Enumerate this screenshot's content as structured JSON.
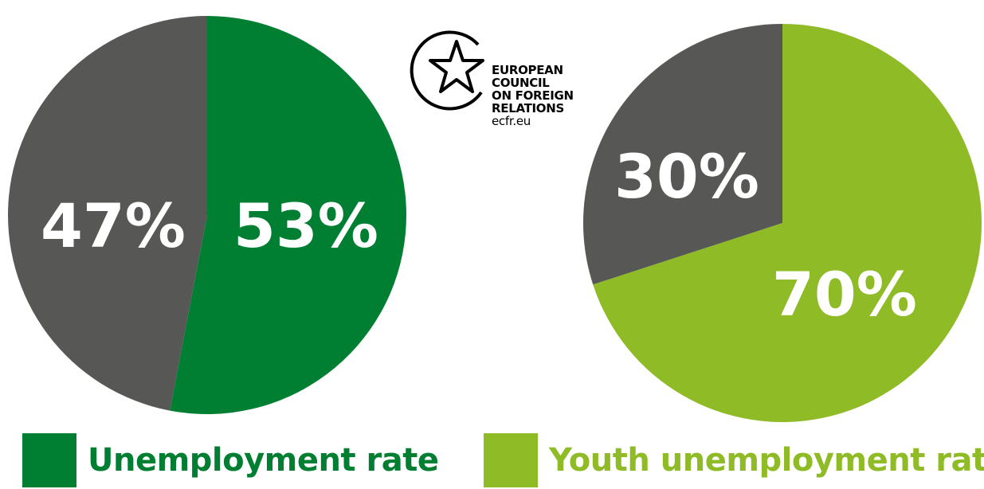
{
  "logo": {
    "line1": "EUROPEAN",
    "line2": "COUNCIL",
    "line3": "ON FOREIGN",
    "line4": "RELATIONS",
    "url": "ecfr.eu"
  },
  "chart_data": [
    {
      "type": "pie",
      "series_name": "Unemployment rate",
      "slices": [
        {
          "label": "53%",
          "value": 53,
          "color": "#007f33"
        },
        {
          "label": "47%",
          "value": 47,
          "color": "#575756"
        }
      ]
    },
    {
      "type": "pie",
      "series_name": "Youth unemployment rate",
      "slices": [
        {
          "label": "70%",
          "value": 70,
          "color": "#8ebb26"
        },
        {
          "label": "30%",
          "value": 30,
          "color": "#575756"
        }
      ]
    }
  ],
  "legend": [
    {
      "label": "Unemployment rate",
      "color": "#007f33"
    },
    {
      "label": "Youth unemployment rate",
      "color": "#8ebb26"
    }
  ]
}
